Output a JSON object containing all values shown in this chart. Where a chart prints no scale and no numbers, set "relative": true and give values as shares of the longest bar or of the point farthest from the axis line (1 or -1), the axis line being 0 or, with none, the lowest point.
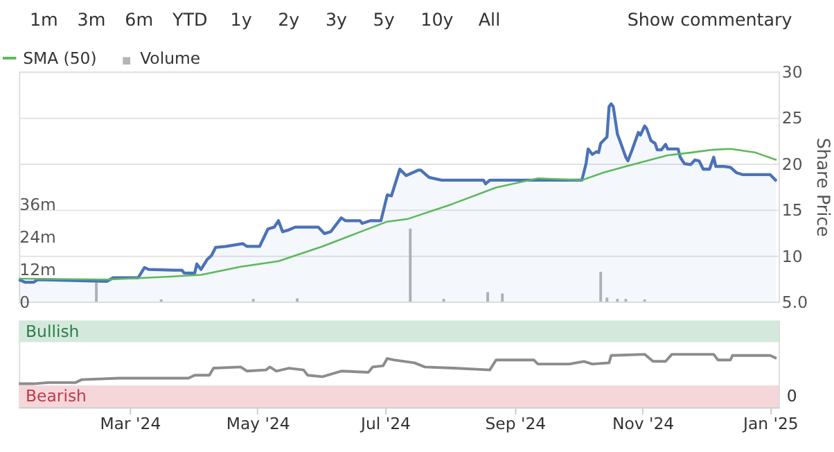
{
  "chart_data": [
    {
      "type": "line",
      "ylabel": "Share Price",
      "legend": "top left",
      "grid": "y",
      "tick_labels": "y",
      "annotations": [
        "1m",
        "3m",
        "6m",
        "YTD",
        "1y",
        "2y",
        "3y",
        "5y",
        "10y",
        "All",
        "Show commentary"
      ],
      "xlim": [
        "2024-01-08",
        "2025-01-05"
      ],
      "ylim": [
        5,
        30
      ],
      "yticks": [
        {
          "value": 5,
          "label": "5.0"
        },
        10,
        15,
        20,
        25,
        30
      ],
      "y2lim": [
        0,
        85
      ],
      "y2ticks": [
        {
          "value": 0,
          "label": "0"
        },
        {
          "value": 12,
          "label": "12m"
        },
        {
          "value": 24,
          "label": "24m"
        },
        {
          "value": 36,
          "label": "36m"
        }
      ],
      "series": [
        {
          "type": "area",
          "color": "#4a72b8",
          "x": [
            "2024-01-08",
            "2024-01-11",
            "2024-01-15",
            "2024-01-17",
            "2024-02-19",
            "2024-02-22",
            "2024-03-05",
            "2024-03-08",
            "2024-03-10",
            "2024-03-26",
            "2024-03-27",
            "2024-04-01",
            "2024-04-02",
            "2024-04-04",
            "2024-04-07",
            "2024-04-09",
            "2024-04-11",
            "2024-04-16",
            "2024-04-24",
            "2024-04-26",
            "2024-05-02",
            "2024-05-06",
            "2024-05-09",
            "2024-05-11",
            "2024-05-13",
            "2024-05-16",
            "2024-05-19",
            "2024-05-30",
            "2024-06-02",
            "2024-06-05",
            "2024-06-10",
            "2024-06-12",
            "2024-06-19",
            "2024-06-20",
            "2024-06-24",
            "2024-06-29",
            "2024-07-02",
            "2024-07-04",
            "2024-07-08",
            "2024-07-11",
            "2024-07-17",
            "2024-07-18",
            "2024-07-22",
            "2024-07-28",
            "2024-08-17",
            "2024-08-18",
            "2024-08-20",
            "2024-10-03",
            "2024-10-05",
            "2024-10-06",
            "2024-10-08",
            "2024-10-10",
            "2024-10-11",
            "2024-10-12",
            "2024-10-15",
            "2024-10-16",
            "2024-10-17",
            "2024-10-18",
            "2024-10-20",
            "2024-10-21",
            "2024-10-24",
            "2024-10-25",
            "2024-10-27",
            "2024-10-30",
            "2024-10-31",
            "2024-11-02",
            "2024-11-03",
            "2024-11-05",
            "2024-11-07",
            "2024-11-08",
            "2024-11-10",
            "2024-11-12",
            "2024-11-13",
            "2024-11-18",
            "2024-11-19",
            "2024-11-21",
            "2024-11-24",
            "2024-11-26",
            "2024-11-28",
            "2024-11-30",
            "2024-12-03",
            "2024-12-05",
            "2024-12-06",
            "2024-12-10",
            "2024-12-13",
            "2024-12-16",
            "2024-12-19",
            "2024-12-29",
            "2025-01-01",
            "2025-01-04"
          ],
          "values": [
            7.4,
            7.1,
            7.1,
            7.4,
            7.2,
            7.6,
            7.6,
            8.7,
            8.5,
            8.4,
            8.1,
            8.1,
            9.1,
            8.5,
            9.6,
            10.0,
            10.9,
            11.0,
            11.3,
            11.0,
            11.0,
            12.9,
            13.1,
            13.8,
            12.6,
            12.8,
            13.1,
            13.1,
            12.4,
            12.6,
            14.1,
            13.8,
            13.8,
            13.5,
            13.8,
            13.8,
            16.6,
            16.5,
            19.4,
            18.7,
            19.3,
            19.3,
            18.5,
            18.2,
            18.2,
            17.8,
            18.2,
            18.2,
            20.0,
            21.6,
            21.0,
            21.3,
            21.2,
            22.2,
            22.9,
            26.2,
            26.5,
            26.2,
            23.2,
            22.6,
            20.7,
            20.3,
            21.5,
            23.4,
            23.1,
            24.1,
            23.8,
            22.5,
            22.2,
            21.5,
            21.5,
            22.1,
            21.6,
            21.6,
            20.7,
            20.0,
            19.9,
            20.4,
            20.3,
            19.4,
            19.4,
            20.7,
            19.7,
            19.7,
            19.6,
            19.0,
            18.8,
            18.8,
            18.8,
            18.1
          ]
        },
        {
          "name": "SMA (50)",
          "type": "line",
          "color": "#5cb85c",
          "x": [
            "2024-01-08",
            "2024-02-19",
            "2024-03-10",
            "2024-04-04",
            "2024-04-23",
            "2024-05-11",
            "2024-06-01",
            "2024-06-17",
            "2024-07-02",
            "2024-07-12",
            "2024-08-02",
            "2024-08-23",
            "2024-09-12",
            "2024-10-03",
            "2024-10-13",
            "2024-10-24",
            "2024-11-03",
            "2024-11-13",
            "2024-11-24",
            "2024-12-04",
            "2024-12-13",
            "2024-12-25",
            "2025-01-04"
          ],
          "values": [
            7.5,
            7.4,
            7.6,
            7.9,
            8.8,
            9.4,
            11.0,
            12.4,
            13.7,
            14.0,
            15.6,
            17.4,
            18.4,
            18.2,
            19.0,
            19.7,
            20.3,
            20.9,
            21.2,
            21.5,
            21.6,
            21.2,
            20.4
          ]
        },
        {
          "name": "Volume",
          "type": "bar",
          "axis": "y2",
          "color": "#b4b4b4",
          "x": [
            "2024-02-14",
            "2024-03-16",
            "2024-04-29",
            "2024-05-20",
            "2024-07-13",
            "2024-07-29",
            "2024-08-19",
            "2024-08-26",
            "2024-10-07",
            "2024-10-12",
            "2024-10-15",
            "2024-10-20",
            "2024-10-24",
            "2024-11-02"
          ],
          "values": [
            7,
            0.8,
            1,
            1.2,
            27,
            1,
            3.5,
            3,
            null,
            11,
            1.5,
            1,
            1,
            0.8
          ]
        }
      ]
    },
    {
      "type": "line",
      "relative": true,
      "tick_labels": "x",
      "annotations": [
        "Bullish",
        "Bearish",
        "0"
      ],
      "xlim": [
        "2024-01-08",
        "2025-01-05"
      ],
      "xticks": [
        {
          "value": "2024-03-01",
          "label": "Mar '24"
        },
        {
          "value": "2024-05-01",
          "label": "May '24"
        },
        {
          "value": "2024-07-01",
          "label": "Jul '24"
        },
        {
          "value": "2024-09-01",
          "label": "Sep '24"
        },
        {
          "value": "2024-11-01",
          "label": "Nov '24"
        },
        {
          "value": "2025-01-01",
          "label": "Jan '25"
        }
      ],
      "series": [
        {
          "color": "#8c8c8c",
          "x": [
            "2024-01-08",
            "2024-01-15",
            "2024-01-22",
            "2024-02-04",
            "2024-02-07",
            "2024-02-25",
            "2024-03-29",
            "2024-04-01",
            "2024-04-08",
            "2024-04-10",
            "2024-04-23",
            "2024-04-26",
            "2024-05-05",
            "2024-05-07",
            "2024-05-10",
            "2024-05-16",
            "2024-05-23",
            "2024-05-25",
            "2024-06-01",
            "2024-06-10",
            "2024-06-23",
            "2024-06-25",
            "2024-06-30",
            "2024-07-02",
            "2024-07-05",
            "2024-07-15",
            "2024-07-20",
            "2024-08-03",
            "2024-08-20",
            "2024-08-23",
            "2024-09-10",
            "2024-09-12",
            "2024-09-27",
            "2024-10-04",
            "2024-10-08",
            "2024-10-16",
            "2024-10-17",
            "2024-11-02",
            "2024-11-06",
            "2024-11-12",
            "2024-11-15",
            "2024-12-05",
            "2024-12-07",
            "2024-12-13",
            "2024-12-14",
            "2025-01-01",
            "2025-01-04"
          ],
          "values": [
            0,
            0,
            0.04,
            0.04,
            0.14,
            0.19,
            0.19,
            0.29,
            0.29,
            0.53,
            0.57,
            0.43,
            0.47,
            0.57,
            0.43,
            0.53,
            0.47,
            0.29,
            0.24,
            0.43,
            0.39,
            0.57,
            0.61,
            0.86,
            0.81,
            0.71,
            0.57,
            0.53,
            0.47,
            0.81,
            0.81,
            0.67,
            0.67,
            0.76,
            0.67,
            0.71,
            0.96,
            1,
            0.76,
            0.76,
            1,
            1,
            0.81,
            0.81,
            0.96,
            0.96,
            0.86
          ]
        }
      ]
    }
  ]
}
